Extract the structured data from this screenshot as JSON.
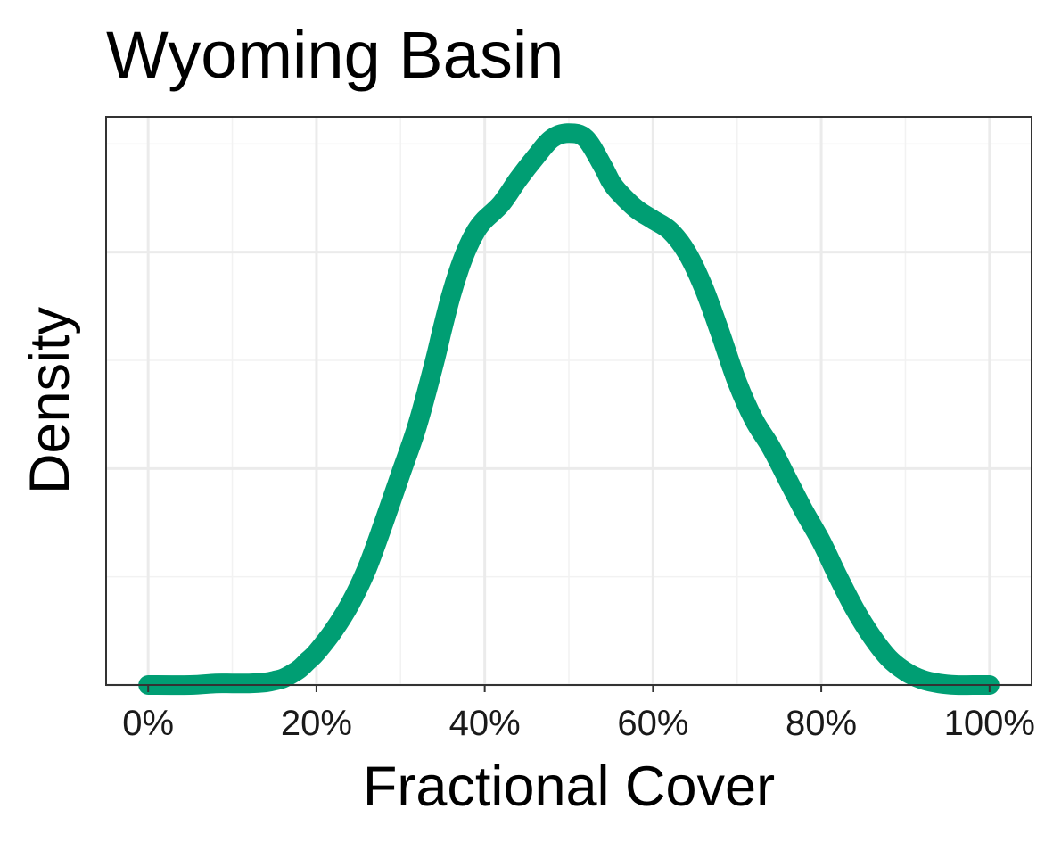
{
  "chart_data": {
    "type": "line",
    "title": "Wyoming Basin",
    "xlabel": "Fractional Cover",
    "ylabel": "Density",
    "xlim": [
      -0.05,
      1.05
    ],
    "ylim": [
      0,
      1.05
    ],
    "x_ticks": [
      0,
      0.2,
      0.4,
      0.6,
      0.8,
      1.0
    ],
    "x_tick_labels": [
      "0%",
      "20%",
      "40%",
      "60%",
      "80%",
      "100%"
    ],
    "y_tick_labels": [],
    "grid": true,
    "line_color": "#009e73",
    "series": [
      {
        "x": [
          0,
          0.05,
          0.08,
          0.1,
          0.12,
          0.14,
          0.15,
          0.16,
          0.17,
          0.18,
          0.19,
          0.2,
          0.22,
          0.24,
          0.26,
          0.28,
          0.3,
          0.32,
          0.34,
          0.35,
          0.36,
          0.37,
          0.38,
          0.39,
          0.4,
          0.42,
          0.44,
          0.46,
          0.48,
          0.5,
          0.52,
          0.54,
          0.55,
          0.56,
          0.58,
          0.6,
          0.62,
          0.64,
          0.66,
          0.68,
          0.7,
          0.72,
          0.74,
          0.76,
          0.78,
          0.8,
          0.82,
          0.84,
          0.86,
          0.88,
          0.9,
          0.92,
          0.94,
          0.96,
          0.98,
          1.0
        ],
        "y": [
          0.0,
          0.0,
          0.003,
          0.003,
          0.003,
          0.005,
          0.008,
          0.012,
          0.02,
          0.03,
          0.045,
          0.06,
          0.1,
          0.15,
          0.215,
          0.3,
          0.39,
          0.48,
          0.595,
          0.66,
          0.72,
          0.77,
          0.81,
          0.84,
          0.86,
          0.89,
          0.935,
          0.975,
          1.01,
          1.02,
          1.01,
          0.96,
          0.93,
          0.91,
          0.88,
          0.86,
          0.84,
          0.8,
          0.735,
          0.65,
          0.56,
          0.49,
          0.44,
          0.38,
          0.32,
          0.265,
          0.2,
          0.14,
          0.09,
          0.05,
          0.025,
          0.01,
          0.003,
          0.0,
          0.0,
          0.0
        ]
      }
    ]
  }
}
